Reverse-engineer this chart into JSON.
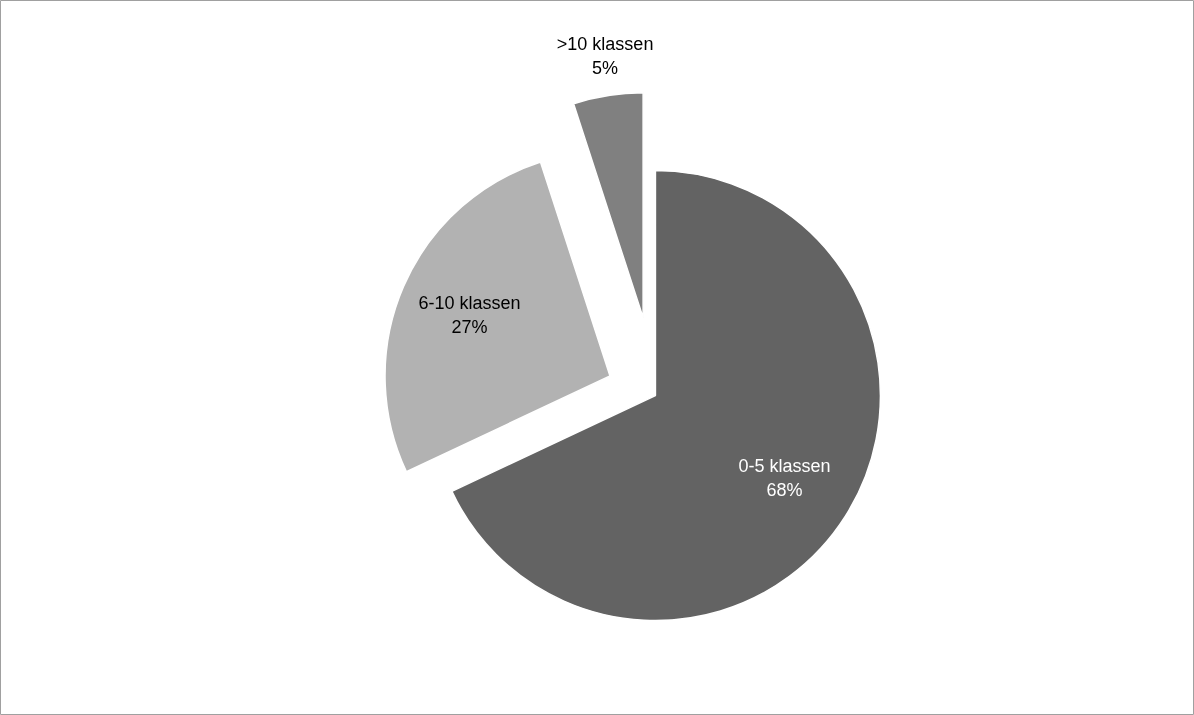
{
  "chart_data": {
    "type": "pie",
    "categories": [
      "0-5 klassen",
      "6-10 klassen",
      ">10 klassen"
    ],
    "values": [
      68,
      27,
      5
    ],
    "value_labels": [
      "68%",
      "27%",
      "5%"
    ],
    "colors": [
      "#636363",
      "#b2b2b2",
      "#808080"
    ]
  }
}
